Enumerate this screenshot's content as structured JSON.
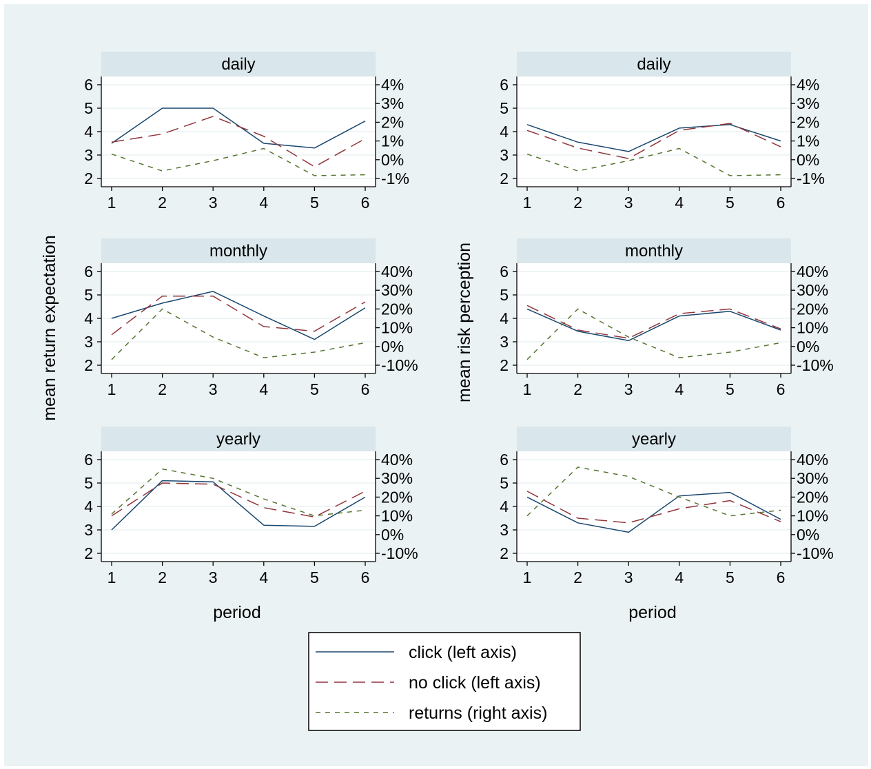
{
  "x_axis_label": "period",
  "y_axis_labels": {
    "left_column": "mean return expectation",
    "right_column": "mean risk perception"
  },
  "legend": [
    {
      "label": "click (left axis)",
      "color": "#1a476f",
      "dash": "solid"
    },
    {
      "label": "no click (left axis)",
      "color": "#90353b",
      "dash": "long-dash"
    },
    {
      "label": "returns (right axis)",
      "color": "#55752f",
      "dash": "short-dash"
    }
  ],
  "colors": {
    "background": "#eaf2f3",
    "panel_header": "#d9e6eb",
    "gridline": "#eaf2f3",
    "click": "#1a476f",
    "no_click": "#90353b",
    "returns": "#55752f"
  },
  "chart_data": [
    {
      "type": "line",
      "title": "daily",
      "ylabel": "mean return expectation",
      "xlabel": "period",
      "x": [
        1,
        2,
        3,
        4,
        5,
        6
      ],
      "ylim": [
        2,
        6
      ],
      "y2lim": [
        -1,
        4
      ],
      "y_ticks": [
        "2",
        "3",
        "4",
        "5",
        "6"
      ],
      "y2_ticks": [
        "-1%",
        "0%",
        "1%",
        "2%",
        "3%",
        "4%"
      ],
      "y2_tick_values": [
        -1,
        0,
        1,
        2,
        3,
        4
      ],
      "series": [
        {
          "name": "click (left axis)",
          "axis": "left",
          "values": [
            3.5,
            5.0,
            5.0,
            3.5,
            3.3,
            4.45
          ]
        },
        {
          "name": "no click (left axis)",
          "axis": "left",
          "values": [
            3.55,
            3.9,
            4.65,
            3.8,
            2.5,
            3.7
          ]
        },
        {
          "name": "returns (right axis)",
          "axis": "right",
          "values": [
            0.3,
            -0.6,
            -0.05,
            0.6,
            -0.85,
            -0.8
          ]
        }
      ]
    },
    {
      "type": "line",
      "title": "daily",
      "ylabel": "mean risk perception",
      "xlabel": "period",
      "x": [
        1,
        2,
        3,
        4,
        5,
        6
      ],
      "ylim": [
        2,
        6
      ],
      "y2lim": [
        -1,
        4
      ],
      "y_ticks": [
        "2",
        "3",
        "4",
        "5",
        "6"
      ],
      "y2_ticks": [
        "-1%",
        "0%",
        "1%",
        "2%",
        "3%",
        "4%"
      ],
      "y2_tick_values": [
        -1,
        0,
        1,
        2,
        3,
        4
      ],
      "series": [
        {
          "name": "click (left axis)",
          "axis": "left",
          "values": [
            4.3,
            3.55,
            3.15,
            4.15,
            4.3,
            3.6
          ]
        },
        {
          "name": "no click (left axis)",
          "axis": "left",
          "values": [
            4.05,
            3.3,
            2.85,
            4.05,
            4.35,
            3.35
          ]
        },
        {
          "name": "returns (right axis)",
          "axis": "right",
          "values": [
            0.3,
            -0.6,
            -0.05,
            0.6,
            -0.85,
            -0.8
          ]
        }
      ]
    },
    {
      "type": "line",
      "title": "monthly",
      "ylabel": "mean return expectation",
      "xlabel": "period",
      "x": [
        1,
        2,
        3,
        4,
        5,
        6
      ],
      "ylim": [
        2,
        6
      ],
      "y2lim": [
        -10,
        40
      ],
      "y_ticks": [
        "2",
        "3",
        "4",
        "5",
        "6"
      ],
      "y2_ticks": [
        "-10%",
        "0%",
        "10%",
        "20%",
        "30%",
        "40%"
      ],
      "y2_tick_values": [
        -10,
        0,
        10,
        20,
        30,
        40
      ],
      "series": [
        {
          "name": "click (left axis)",
          "axis": "left",
          "values": [
            4.0,
            4.65,
            5.15,
            4.1,
            3.1,
            4.45
          ]
        },
        {
          "name": "no click (left axis)",
          "axis": "left",
          "values": [
            3.3,
            4.95,
            4.95,
            3.65,
            3.45,
            4.7
          ]
        },
        {
          "name": "returns (right axis)",
          "axis": "right",
          "values": [
            -7,
            20,
            5,
            -6,
            -3,
            2
          ]
        }
      ]
    },
    {
      "type": "line",
      "title": "monthly",
      "ylabel": "mean risk perception",
      "xlabel": "period",
      "x": [
        1,
        2,
        3,
        4,
        5,
        6
      ],
      "ylim": [
        2,
        6
      ],
      "y2lim": [
        -10,
        40
      ],
      "y_ticks": [
        "2",
        "3",
        "4",
        "5",
        "6"
      ],
      "y2_ticks": [
        "-10%",
        "0%",
        "10%",
        "20%",
        "30%",
        "40%"
      ],
      "y2_tick_values": [
        -10,
        0,
        10,
        20,
        30,
        40
      ],
      "series": [
        {
          "name": "click (left axis)",
          "axis": "left",
          "values": [
            4.4,
            3.45,
            3.05,
            4.1,
            4.3,
            3.5
          ]
        },
        {
          "name": "no click (left axis)",
          "axis": "left",
          "values": [
            4.55,
            3.5,
            3.15,
            4.2,
            4.4,
            3.55
          ]
        },
        {
          "name": "returns (right axis)",
          "axis": "right",
          "values": [
            -7,
            20,
            5,
            -6,
            -3,
            2
          ]
        }
      ]
    },
    {
      "type": "line",
      "title": "yearly",
      "ylabel": "mean return expectation",
      "xlabel": "period",
      "x": [
        1,
        2,
        3,
        4,
        5,
        6
      ],
      "ylim": [
        2,
        6
      ],
      "y2lim": [
        -10,
        40
      ],
      "y_ticks": [
        "2",
        "3",
        "4",
        "5",
        "6"
      ],
      "y2_ticks": [
        "-10%",
        "0%",
        "10%",
        "20%",
        "30%",
        "40%"
      ],
      "y2_tick_values": [
        -10,
        0,
        10,
        20,
        30,
        40
      ],
      "series": [
        {
          "name": "click (left axis)",
          "axis": "left",
          "values": [
            3.0,
            5.1,
            5.05,
            3.2,
            3.15,
            4.4
          ]
        },
        {
          "name": "no click (left axis)",
          "axis": "left",
          "values": [
            3.6,
            5.0,
            4.95,
            3.95,
            3.55,
            4.65
          ]
        },
        {
          "name": "returns (right axis)",
          "axis": "right",
          "values": [
            11,
            35,
            30,
            19,
            10,
            13
          ]
        }
      ]
    },
    {
      "type": "line",
      "title": "yearly",
      "ylabel": "mean risk perception",
      "xlabel": "period",
      "x": [
        1,
        2,
        3,
        4,
        5,
        6
      ],
      "ylim": [
        2,
        6
      ],
      "y2lim": [
        -10,
        40
      ],
      "y_ticks": [
        "2",
        "3",
        "4",
        "5",
        "6"
      ],
      "y2_ticks": [
        "-10%",
        "0%",
        "10%",
        "20%",
        "30%",
        "40%"
      ],
      "y2_tick_values": [
        -10,
        0,
        10,
        20,
        30,
        40
      ],
      "series": [
        {
          "name": "click (left axis)",
          "axis": "left",
          "values": [
            4.4,
            3.3,
            2.9,
            4.45,
            4.6,
            3.45
          ]
        },
        {
          "name": "no click (left axis)",
          "axis": "left",
          "values": [
            4.65,
            3.5,
            3.3,
            3.9,
            4.25,
            3.35
          ]
        },
        {
          "name": "returns (right axis)",
          "axis": "right",
          "values": [
            10,
            36,
            31,
            20,
            10,
            13
          ]
        }
      ]
    }
  ]
}
